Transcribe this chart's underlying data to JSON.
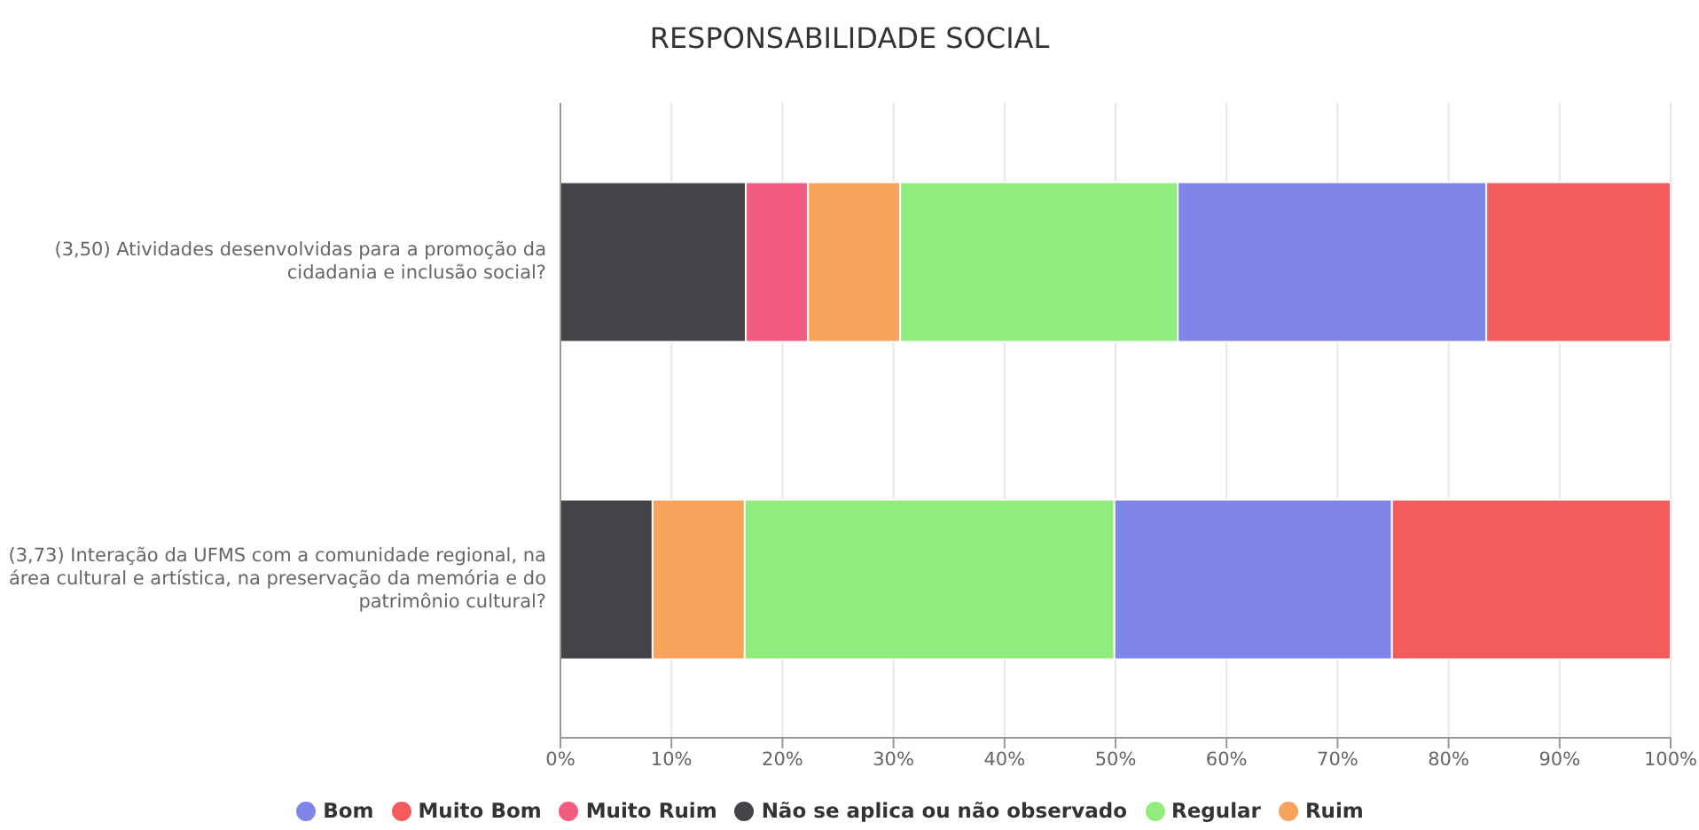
{
  "chart_data": {
    "type": "bar",
    "orientation": "horizontal",
    "stacked": true,
    "title": "RESPONSABILIDADE SOCIAL",
    "categories": [
      "(3,50) Atividades desenvolvidas para a promoção da cidadania e inclusão social?",
      "(3,73) Interação da UFMS com a comunidade regional, na área cultural e artística, na preservação da memória e do patrimônio cultural?"
    ],
    "series": [
      {
        "name": "Não se aplica ou não observado",
        "color": "#434348",
        "values": [
          16.7,
          8.3
        ]
      },
      {
        "name": "Muito Ruim",
        "color": "#f15c80",
        "values": [
          5.6,
          0
        ]
      },
      {
        "name": "Ruim",
        "color": "#f7a35c",
        "values": [
          8.3,
          8.3
        ]
      },
      {
        "name": "Regular",
        "color": "#90ed7d",
        "values": [
          25,
          33.3
        ]
      },
      {
        "name": "Bom",
        "color": "#8085e9",
        "values": [
          27.8,
          25
        ]
      },
      {
        "name": "Muito Bom",
        "color": "#f45b5b",
        "values": [
          16.6,
          25.1
        ]
      }
    ],
    "xlim": [
      0,
      100
    ],
    "xticks": [
      {
        "value": 0,
        "label": "0%"
      },
      {
        "value": 10,
        "label": "10%"
      },
      {
        "value": 20,
        "label": "20%"
      },
      {
        "value": 30,
        "label": "30%"
      },
      {
        "value": 40,
        "label": "40%"
      },
      {
        "value": 50,
        "label": "50%"
      },
      {
        "value": 60,
        "label": "60%"
      },
      {
        "value": 70,
        "label": "70%"
      },
      {
        "value": 80,
        "label": "80%"
      },
      {
        "value": 90,
        "label": "90%"
      },
      {
        "value": 100,
        "label": "100%"
      }
    ],
    "grid": "x",
    "legend": "bottom"
  }
}
